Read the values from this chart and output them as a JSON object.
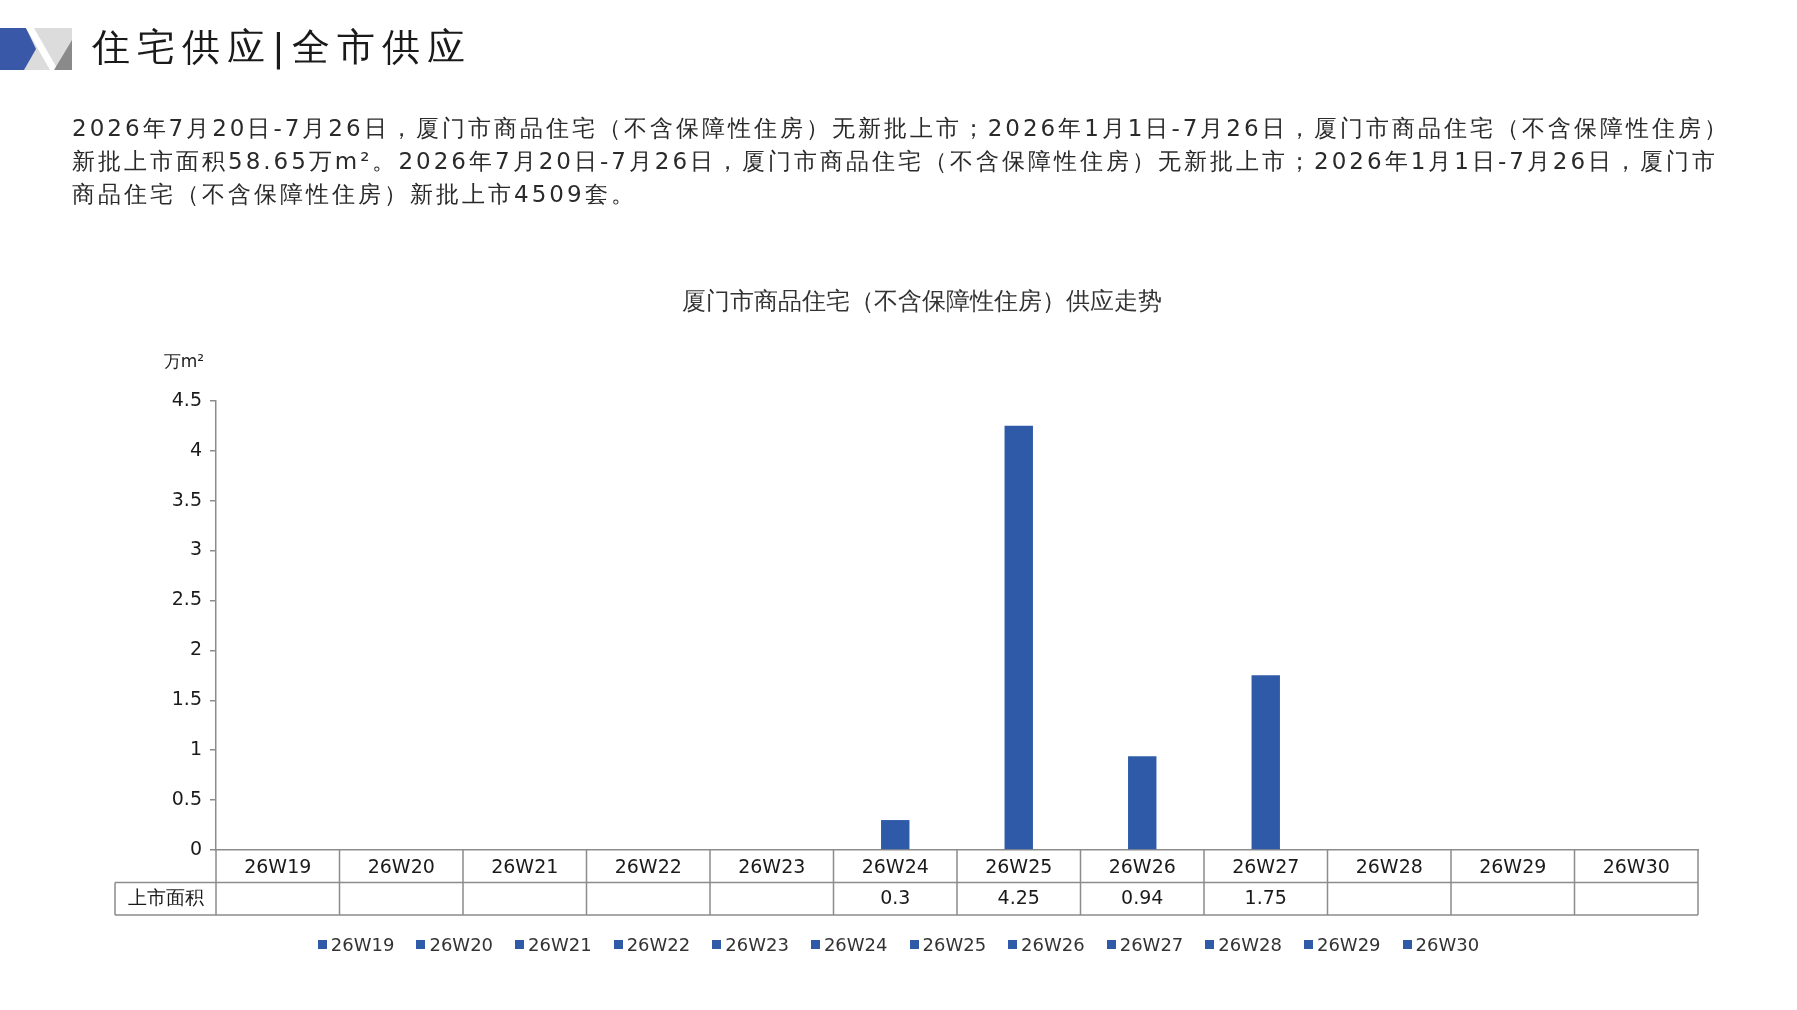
{
  "chart_data": {
    "type": "bar",
    "title": "厦门市商品住宅（不含保障性住房）供应走势",
    "ylabel": "万m²",
    "annotations": [
      "住宅供应|全市供应",
      "2026年7月20日-7月26日，厦门市商品住宅（不含保障性住房）无新批上市；2026年1月1日-7月26日，厦门市商品住宅（不含保障性住房）新批上市面积58.65万m²。2026年7月20日-7月26日，厦门市商品住宅（不含保障性住房）无新批上市；2026年1月1日-7月26日，厦门市商品住宅（不含保障性住房）新批上市4509套。"
    ],
    "categories": [
      "26W19",
      "26W20",
      "26W21",
      "26W22",
      "26W23",
      "26W24",
      "26W25",
      "26W26",
      "26W27",
      "26W28",
      "26W29",
      "26W30"
    ],
    "series": [
      {
        "name": "上市面积",
        "color": "#2e5aa8",
        "values": [
          null,
          null,
          null,
          null,
          null,
          0.3,
          4.25,
          0.94,
          1.75,
          null,
          null,
          null
        ]
      }
    ],
    "ylim": [
      0,
      4.5
    ],
    "yticks": [
      0,
      0.5,
      1,
      1.5,
      2,
      2.5,
      3,
      3.5,
      4,
      4.5
    ],
    "legend": "bottom",
    "data_labels": true
  }
}
